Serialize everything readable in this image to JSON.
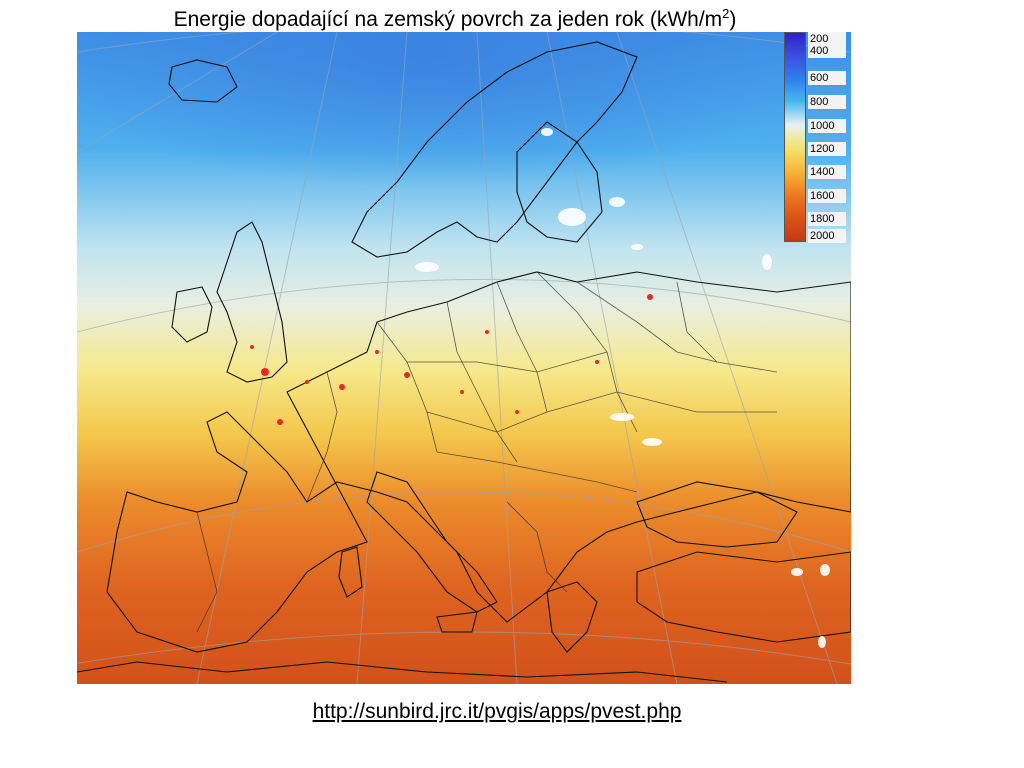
{
  "title": {
    "text": "Energie dopadající na zemský povrch za jeden rok (kWh/m",
    "superscript": "2",
    "closing": ")"
  },
  "legend": {
    "labels": [
      "200",
      "400",
      "600",
      "800",
      "1000",
      "1200",
      "1400",
      "1600",
      "1800",
      "2000"
    ],
    "colors": [
      "#2f20c8",
      "#3b4fe0",
      "#2f7fe8",
      "#47b7f0",
      "#e6f2f2",
      "#f5e06a",
      "#f6b33a",
      "#ea7a22",
      "#d9531a",
      "#c23a14"
    ]
  },
  "map": {
    "description_colors": {
      "north": "#3f9ae6",
      "mid": "#f2e783",
      "south": "#d95a1c"
    },
    "marker_color": "#e8282a"
  },
  "source_link": "http://sunbird.jrc.it/pvgis/apps/pvest.php"
}
